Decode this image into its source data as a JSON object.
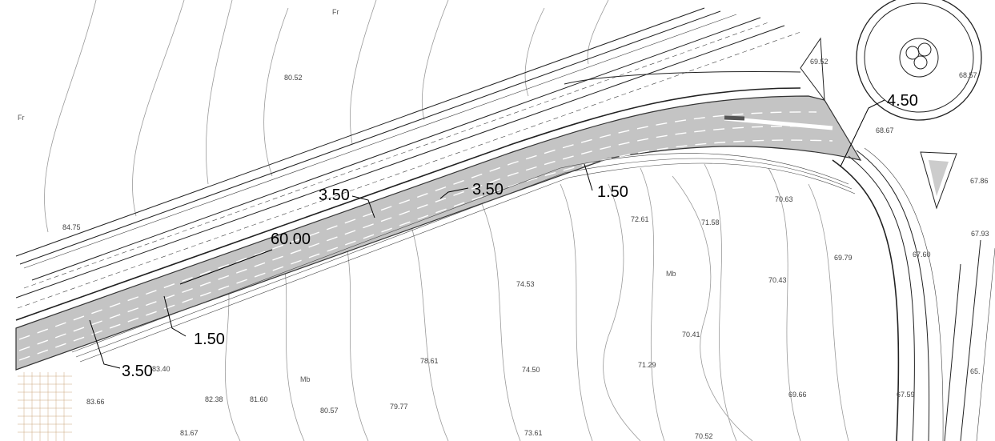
{
  "dimensions": [
    "3.50",
    "3.50",
    "1.50",
    "60.00",
    "4.50",
    "1.50",
    "3.50"
  ],
  "zones": [
    "Fr",
    "Fr",
    "Mb",
    "Mb"
  ],
  "elevations": [
    "80.52",
    "84.75",
    "69.52",
    "68.57",
    "68.67",
    "70.63",
    "72.61",
    "71.58",
    "69.79",
    "74.53",
    "70.43",
    "70.41",
    "78.61",
    "74.50",
    "71.29",
    "83.40",
    "83.66",
    "82.38",
    "81.60",
    "80.57",
    "79.77",
    "69.66",
    "67.59",
    "65.",
    "67.60",
    "67.93",
    "67.86",
    "81.67",
    "73.61",
    "70.52"
  ]
}
